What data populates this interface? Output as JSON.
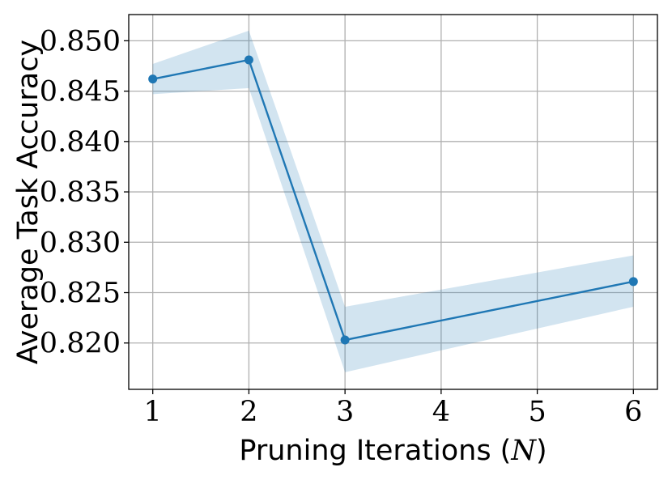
{
  "chart_data": {
    "type": "line",
    "xlabel": "Pruning Iterations (",
    "xlabel_symbol": "N",
    "xlabel_close": ")",
    "ylabel": "Average Task Accuracy",
    "xlim": [
      0.75,
      6.25
    ],
    "ylim": [
      0.8154,
      0.8526
    ],
    "x_ticks": [
      1,
      2,
      3,
      4,
      5,
      6
    ],
    "y_ticks": [
      0.82,
      0.825,
      0.83,
      0.835,
      0.84,
      0.845,
      0.85
    ],
    "y_tick_labels": [
      "0.820",
      "0.825",
      "0.830",
      "0.835",
      "0.840",
      "0.845",
      "0.850"
    ],
    "grid": true,
    "series": [
      {
        "x": [
          1,
          2,
          3,
          6
        ],
        "y": [
          0.8462,
          0.8481,
          0.8203,
          0.8261
        ],
        "lower": [
          0.8447,
          0.8453,
          0.8171,
          0.8236
        ],
        "upper": [
          0.8477,
          0.851,
          0.8236,
          0.8287
        ],
        "color": "#1f77b4",
        "band_color": "#1f77b4",
        "marker": "circle"
      }
    ]
  }
}
